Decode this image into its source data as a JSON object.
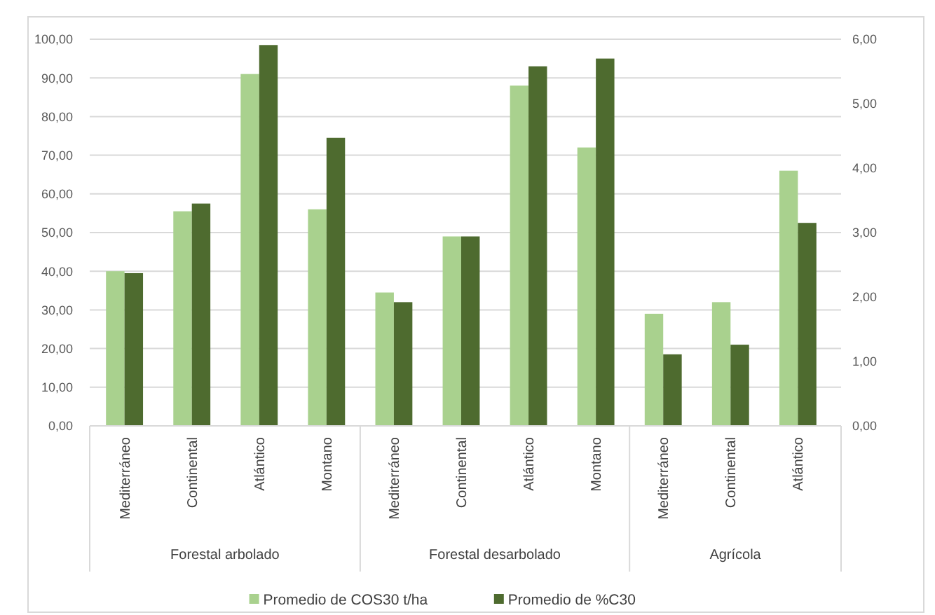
{
  "chart_data": {
    "type": "bar",
    "categories": [
      "Mediterráneo",
      "Continental",
      "Atlántico",
      "Montano",
      "Mediterráneo",
      "Continental",
      "Atlántico",
      "Montano",
      "Mediterráneo",
      "Continental",
      "Atlántico"
    ],
    "series": [
      {
        "name": "Promedio de COS30 t/ha",
        "color": "#a9d18e",
        "values": [
          40,
          55.5,
          91,
          56,
          34.5,
          49,
          88,
          72,
          29,
          32,
          66
        ]
      },
      {
        "name": "Promedio de %C30",
        "color": "#4e6b2f",
        "axis": "y2",
        "values": [
          2.37,
          3.45,
          5.91,
          4.47,
          1.92,
          2.94,
          5.58,
          5.7,
          1.11,
          1.26,
          3.15
        ]
      }
    ],
    "ylim": [
      0,
      100
    ],
    "yticks": [
      {
        "value": 0,
        "label": "0,00"
      },
      {
        "value": 10,
        "label": "10,00"
      },
      {
        "value": 20,
        "label": "20,00"
      },
      {
        "value": 30,
        "label": "30,00"
      },
      {
        "value": 40,
        "label": "40,00"
      },
      {
        "value": 50,
        "label": "50,00"
      },
      {
        "value": 60,
        "label": "60,00"
      },
      {
        "value": 70,
        "label": "70,00"
      },
      {
        "value": 80,
        "label": "80,00"
      },
      {
        "value": 90,
        "label": "90,00"
      },
      {
        "value": 100,
        "label": "100,00"
      }
    ],
    "y2lim": [
      0,
      6
    ],
    "y2ticks": [
      {
        "value": 0,
        "label": "0,00"
      },
      {
        "value": 1,
        "label": "1,00"
      },
      {
        "value": 2,
        "label": "2,00"
      },
      {
        "value": 3,
        "label": "3,00"
      },
      {
        "value": 4,
        "label": "4,00"
      },
      {
        "value": 5,
        "label": "5,00"
      },
      {
        "value": 6,
        "label": "6,00"
      }
    ],
    "annotations": [
      "Forestal arbolado",
      "Forestal desarbolado",
      "Agrícola"
    ],
    "grid": "y",
    "legend": "bottom"
  }
}
